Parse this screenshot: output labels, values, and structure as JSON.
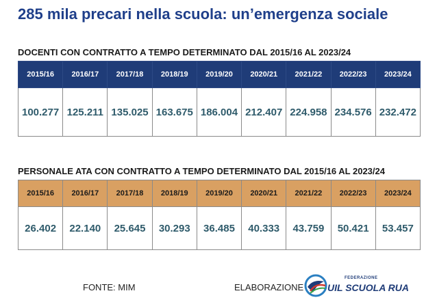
{
  "title": "285 mila precari nella scuola: un’emergenza sociale",
  "chart_data": [
    {
      "type": "table",
      "title": "DOCENTI CON CONTRATTO A TEMPO DETERMINATO DAL 2015/16 AL 2023/24",
      "categories": [
        "2015/16",
        "2016/17",
        "2017/18",
        "2018/19",
        "2019/20",
        "2020/21",
        "2021/22",
        "2022/23",
        "2023/24"
      ],
      "values": [
        "100.277",
        "125.211",
        "135.025",
        "163.675",
        "186.004",
        "212.407",
        "224.958",
        "234.576",
        "232.472"
      ],
      "header_color": "#1f3c78"
    },
    {
      "type": "table",
      "title": "PERSONALE ATA CON CONTRATTO A TEMPO DETERMINATO DAL 2015/16 AL 2023/24",
      "categories": [
        "2015/16",
        "2016/17",
        "2017/18",
        "2018/19",
        "2019/20",
        "2020/21",
        "2021/22",
        "2022/23",
        "2023/24"
      ],
      "values": [
        "26.402",
        "22.140",
        "25.645",
        "30.293",
        "36.485",
        "40.333",
        "43.759",
        "50.421",
        "53.457"
      ],
      "header_color": "#d9a062"
    }
  ],
  "footer": {
    "source": "FONTE: MIM",
    "elaboration": "ELABORAZIONE",
    "logo_top": "FEDERAZIONE",
    "logo_main": "UIL SCUOLA RUA"
  }
}
